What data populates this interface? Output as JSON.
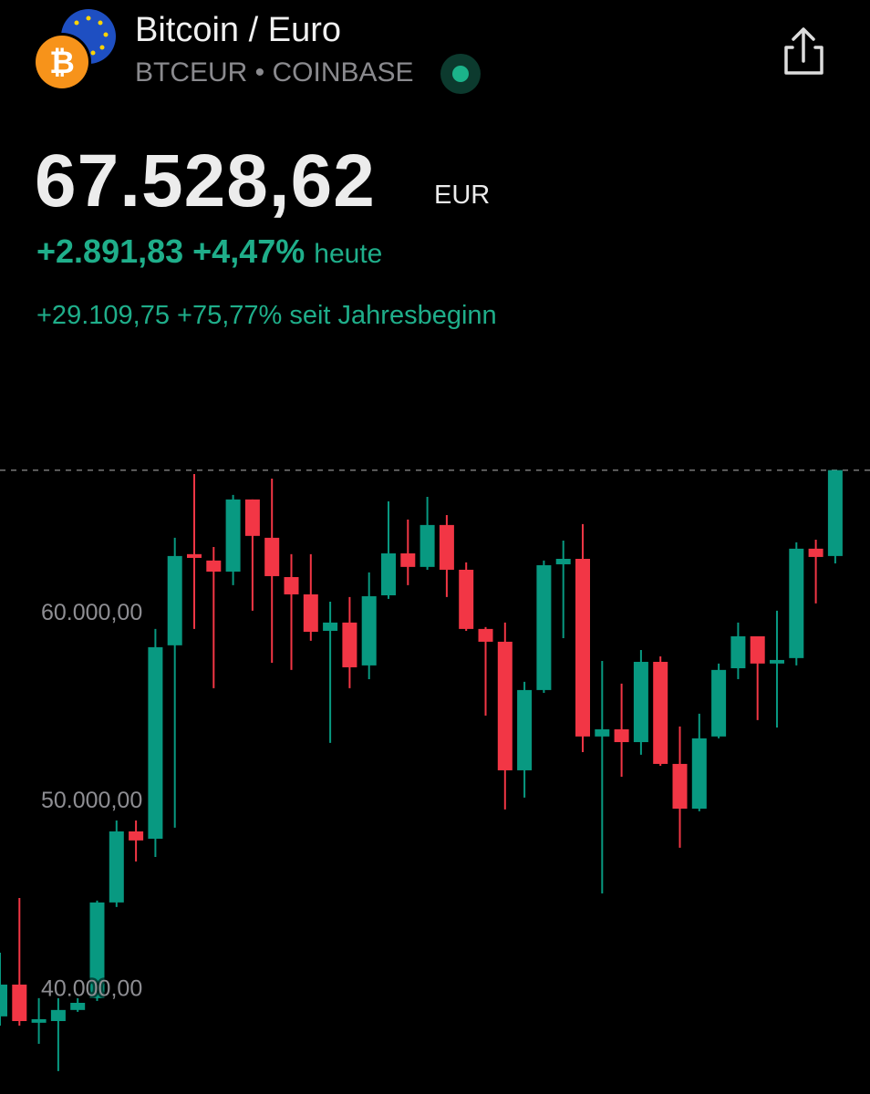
{
  "header": {
    "title": "Bitcoin / Euro",
    "symbol_line": "BTCEUR • COINBASE",
    "price": "67.528,62",
    "currency": "EUR",
    "change_today": "+2.891,83 +4,47%",
    "today_label": "heute",
    "change_ytd": "+29.109,75 +75,77% seit Jahresbeginn"
  },
  "chart_data": {
    "type": "candlestick",
    "up_color": "#089981",
    "down_color": "#f23645",
    "ylim": [
      34340,
      72170
    ],
    "yticks": [
      {
        "value": 40000,
        "label": "40.000,00"
      },
      {
        "value": 50000,
        "label": "50.000,00"
      },
      {
        "value": 60000,
        "label": "60.000,00"
      }
    ],
    "open": [
      38470,
      40160,
      38130,
      38220,
      38810,
      39440,
      44530,
      48310,
      47920,
      58210,
      63060,
      62720,
      62130,
      65970,
      63930,
      61840,
      60920,
      58980,
      59420,
      57140,
      60870,
      63100,
      62380,
      64610,
      62230,
      59080,
      58400,
      51560,
      55830,
      62520,
      62810,
      53360,
      53740,
      53060,
      57330,
      51900,
      49520,
      53360,
      56990,
      58690,
      57240,
      57530,
      63350,
      62960
    ],
    "high": [
      41860,
      44770,
      39440,
      39440,
      39440,
      44630,
      48890,
      48890,
      59080,
      63930,
      67320,
      63440,
      66210,
      65970,
      67080,
      63060,
      63060,
      60530,
      60780,
      62090,
      65870,
      64900,
      66110,
      65140,
      62620,
      59180,
      59420,
      56270,
      62720,
      63780,
      64660,
      57380,
      56170,
      57960,
      57620,
      53890,
      54570,
      57240,
      59420,
      58690,
      60050,
      63690,
      63830,
      67528.62
    ],
    "low": [
      37980,
      37980,
      37010,
      35560,
      38710,
      39290,
      44290,
      46710,
      46950,
      48510,
      59080,
      55930,
      61410,
      60050,
      57280,
      56900,
      58450,
      53020,
      55930,
      56410,
      60680,
      61410,
      62230,
      60780,
      58980,
      54470,
      49480,
      50110,
      55680,
      58590,
      52530,
      45010,
      51220,
      52390,
      51800,
      47440,
      49380,
      53260,
      56410,
      54230,
      53840,
      57140,
      60440,
      62570
    ],
    "close": [
      40160,
      38220,
      38320,
      38810,
      39190,
      44530,
      48310,
      47830,
      58110,
      62960,
      62860,
      62130,
      65970,
      64030,
      61890,
      60920,
      58930,
      59420,
      57040,
      60820,
      63100,
      62380,
      64610,
      62230,
      59080,
      58400,
      51560,
      55830,
      62470,
      62810,
      53360,
      53740,
      53060,
      57330,
      51900,
      49520,
      53260,
      56900,
      58690,
      57240,
      57430,
      63350,
      62910,
      67528.62
    ]
  }
}
